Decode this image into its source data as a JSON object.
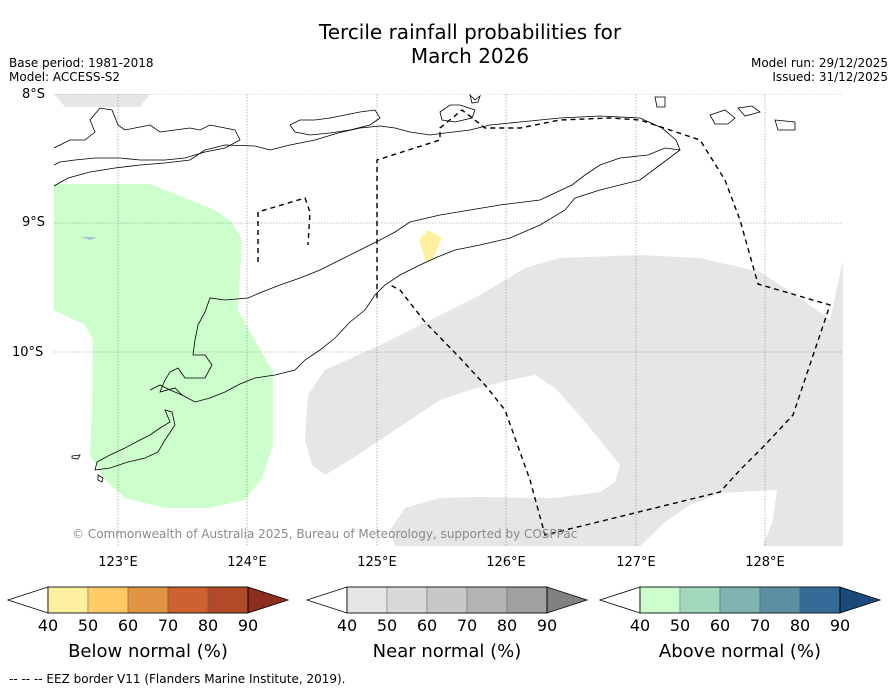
{
  "title_line1": "Tercile rainfall probabilities for",
  "title_line2": "March 2026",
  "meta": {
    "base_period": "Base period: 1981-2018",
    "model": "Model: ACCESS-S2",
    "model_run": "Model run: 29/12/2025",
    "issued": "Issued: 31/12/2025"
  },
  "map": {
    "lat_labels": [
      "8°S",
      "9°S",
      "10°S"
    ],
    "lon_labels": [
      "123°E",
      "124°E",
      "125°E",
      "126°E",
      "127°E",
      "128°E"
    ],
    "copyright": "© Commonwealth of Australia 2025, Bureau of Meteorology, supported by COSPPac"
  },
  "colorbars": [
    {
      "label": "Below normal (%)",
      "ticks": [
        "40",
        "50",
        "60",
        "70",
        "80",
        "90"
      ],
      "colors": [
        "#ffffff",
        "#fff0a0",
        "#fecb66",
        "#e29445",
        "#cd6132",
        "#b04a28",
        "#8c2d1f"
      ]
    },
    {
      "label": "Near normal (%)",
      "ticks": [
        "40",
        "50",
        "60",
        "70",
        "80",
        "90"
      ],
      "colors": [
        "#ffffff",
        "#e6e6e6",
        "#d8d8d8",
        "#c8c8c8",
        "#b4b4b4",
        "#a0a0a0",
        "#808080"
      ]
    },
    {
      "label": "Above normal (%)",
      "ticks": [
        "40",
        "50",
        "60",
        "70",
        "80",
        "90"
      ],
      "colors": [
        "#ffffff",
        "#ccffcc",
        "#a3d8bc",
        "#80b4b0",
        "#5a90a0",
        "#336a98",
        "#1a4a7a"
      ]
    }
  ],
  "footer": "-- -- -- EEZ border V11 (Flanders Marine Institute, 2019)."
}
